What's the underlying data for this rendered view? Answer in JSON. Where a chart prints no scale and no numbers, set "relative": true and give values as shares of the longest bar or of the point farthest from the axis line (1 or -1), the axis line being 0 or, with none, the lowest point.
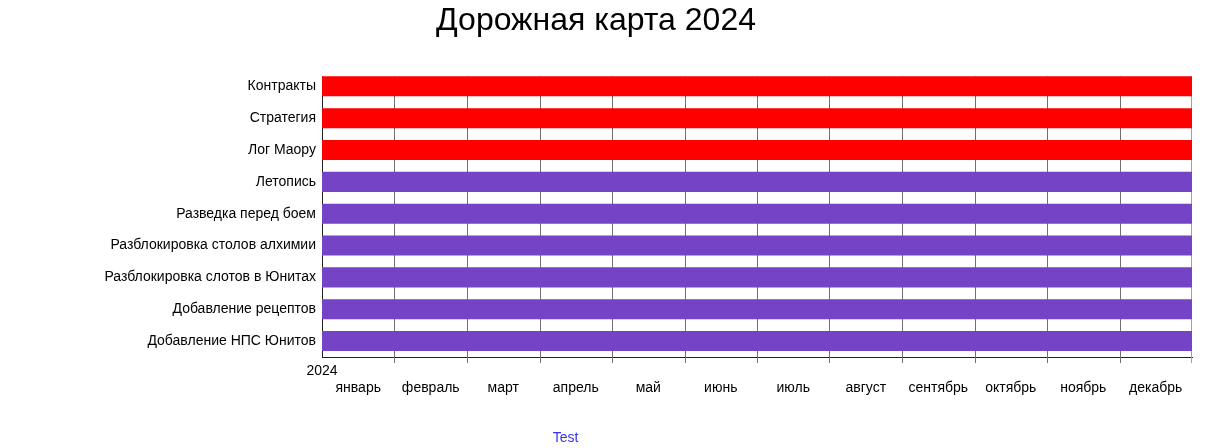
{
  "chart_data": {
    "type": "bar",
    "orientation": "horizontal",
    "relative": true,
    "title": "Дорожная карта 2024",
    "xlabel": "2024",
    "categories": [
      "Контракты",
      "Стратегия",
      "Лог Маору",
      "Летопись",
      "Разведка перед боем",
      "Разблокировка столов алхимии",
      "Разблокировка слотов в Юнитах",
      "Добавление рецептов",
      "Добавление НПС Юнитов"
    ],
    "values": [
      1,
      1,
      1,
      1,
      1,
      1,
      1,
      1,
      1
    ],
    "colors": [
      "#ff0000",
      "#ff0000",
      "#ff0000",
      "#7443c6",
      "#7443c6",
      "#7443c6",
      "#7443c6",
      "#7443c6",
      "#7443c6"
    ],
    "ref_lines": [
      {
        "axis": "x",
        "value": 0.0833
      },
      {
        "axis": "x",
        "value": 0.1667
      },
      {
        "axis": "x",
        "value": 0.25
      },
      {
        "axis": "x",
        "value": 0.3333
      },
      {
        "axis": "x",
        "value": 0.4167
      },
      {
        "axis": "x",
        "value": 0.5
      },
      {
        "axis": "x",
        "value": 0.5833
      },
      {
        "axis": "x",
        "value": 0.6667
      },
      {
        "axis": "x",
        "value": 0.75
      },
      {
        "axis": "x",
        "value": 0.8333
      },
      {
        "axis": "x",
        "value": 0.9167
      }
    ],
    "annotations": [
      "январь",
      "февраль",
      "март",
      "апрель",
      "май",
      "июнь",
      "июль",
      "август",
      "сентябрь",
      "октябрь",
      "ноябрь",
      "декабрь",
      "Test"
    ]
  }
}
